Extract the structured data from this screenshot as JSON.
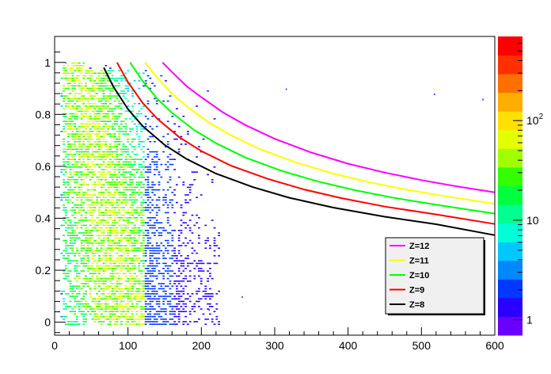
{
  "chart_data": {
    "type": "heatmap",
    "xlim": [
      0,
      600
    ],
    "ylim": [
      -0.05,
      1.1
    ],
    "x_ticks": [
      0,
      100,
      200,
      300,
      400,
      500,
      600
    ],
    "y_ticks": [
      0,
      0.2,
      0.4,
      0.6,
      0.8,
      1
    ],
    "y_tick_labels": [
      "0",
      "0.2",
      "0.4",
      "0.6",
      "0.8",
      "1"
    ],
    "color_scale": {
      "scale": "log",
      "min": 0.7,
      "max": 700,
      "tick_labels": [
        {
          "value": 1,
          "label": "1"
        },
        {
          "value": 10,
          "label": "10"
        },
        {
          "value": 100,
          "label": "10",
          "exponent": "2"
        }
      ],
      "palette": [
        "#6a00ff",
        "#2a00ff",
        "#0038ff",
        "#0088ff",
        "#00c8ff",
        "#00ffd8",
        "#00ff90",
        "#00ff3c",
        "#34ff00",
        "#a0ff00",
        "#e4ff00",
        "#ffe000",
        "#ffae00",
        "#ff7000",
        "#ff3000",
        "#ff0000"
      ]
    },
    "density_regions": [
      {
        "x": [
          10,
          60
        ],
        "y": [
          0.0,
          1.0
        ],
        "level": "high"
      },
      {
        "x": [
          60,
          120
        ],
        "y": [
          0.0,
          0.95
        ],
        "level": "medium"
      },
      {
        "x": [
          120,
          220
        ],
        "y": [
          0.0,
          0.85
        ],
        "level": "low"
      }
    ],
    "series": [
      {
        "name": "Z=12",
        "color": "#ff00ff",
        "x": [
          147,
          160,
          180,
          200,
          230,
          260,
          300,
          350,
          400,
          450,
          500,
          550,
          600
        ],
        "y": [
          1.0,
          0.963,
          0.908,
          0.866,
          0.807,
          0.759,
          0.706,
          0.653,
          0.61,
          0.576,
          0.547,
          0.522,
          0.5
        ]
      },
      {
        "name": "Z=11",
        "color": "#ffff00",
        "x": [
          123,
          140,
          160,
          180,
          210,
          240,
          280,
          330,
          380,
          430,
          480,
          530,
          600
        ],
        "y": [
          1.0,
          0.94,
          0.88,
          0.831,
          0.769,
          0.72,
          0.666,
          0.614,
          0.572,
          0.538,
          0.51,
          0.486,
          0.456
        ]
      },
      {
        "name": "Z=10",
        "color": "#00ff00",
        "x": [
          103,
          120,
          140,
          160,
          190,
          220,
          260,
          310,
          360,
          410,
          460,
          520,
          600
        ],
        "y": [
          1.0,
          0.928,
          0.86,
          0.806,
          0.74,
          0.689,
          0.634,
          0.582,
          0.541,
          0.508,
          0.48,
          0.452,
          0.418
        ]
      },
      {
        "name": "Z=9",
        "color": "#ff0000",
        "x": [
          85,
          100,
          120,
          140,
          170,
          200,
          240,
          290,
          340,
          390,
          450,
          520,
          600
        ],
        "y": [
          1.0,
          0.924,
          0.844,
          0.783,
          0.712,
          0.659,
          0.603,
          0.552,
          0.511,
          0.478,
          0.445,
          0.415,
          0.378
        ]
      },
      {
        "name": "Z=8",
        "color": "#000000",
        "x": [
          67,
          80,
          100,
          120,
          150,
          180,
          220,
          270,
          320,
          380,
          450,
          520,
          600
        ],
        "y": [
          0.98,
          0.907,
          0.82,
          0.755,
          0.682,
          0.628,
          0.572,
          0.52,
          0.479,
          0.441,
          0.406,
          0.377,
          0.335
        ]
      }
    ],
    "legend": {
      "position": "bottom-right",
      "entries": [
        "Z=12",
        "Z=11",
        "Z=10",
        "Z=9",
        "Z=8"
      ]
    }
  }
}
